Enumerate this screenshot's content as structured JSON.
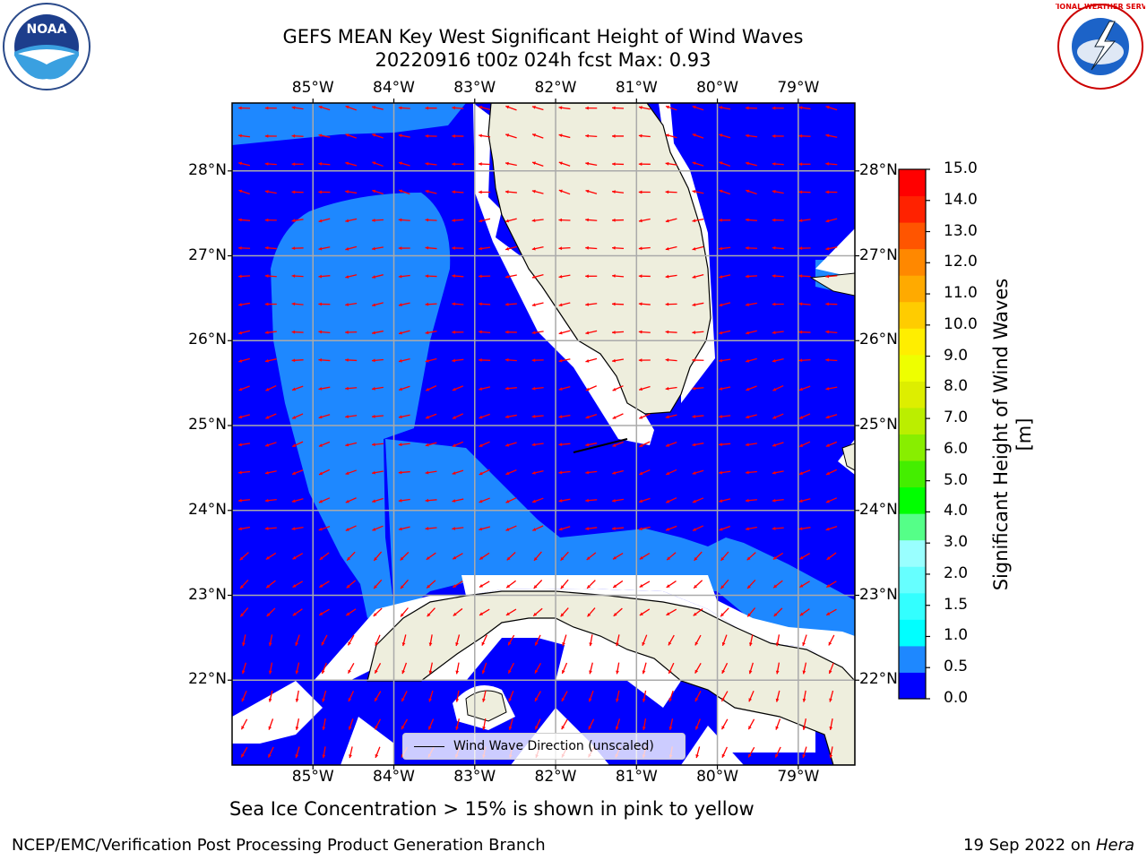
{
  "title": {
    "line1": "GEFS MEAN Key West Significant Height of Wind Waves",
    "line2": "20220916 t00z 024h fcst   Max: 0.93"
  },
  "logos": {
    "left": "NOAA",
    "right": "NATIONAL WEATHER SERVICE"
  },
  "map": {
    "lon_labels": [
      "85°W",
      "84°W",
      "83°W",
      "82°W",
      "81°W",
      "80°W",
      "79°W"
    ],
    "lat_labels": [
      "28°N",
      "27°N",
      "26°N",
      "25°N",
      "24°N",
      "23°N",
      "22°N"
    ],
    "lon_range": [
      -86.0,
      -78.3
    ],
    "lat_range": [
      21.0,
      28.8
    ],
    "grid": true,
    "arrow_color": "#ff0000",
    "land_color": "#eeeedd",
    "legend_label": "Wind Wave Direction (unscaled)"
  },
  "colorbar": {
    "label": "Significant Height of Wind Waves [m]",
    "ticks": [
      "15.0",
      "14.0",
      "13.0",
      "12.0",
      "11.0",
      "10.0",
      "9.0",
      "8.0",
      "7.0",
      "6.0",
      "5.0",
      "4.0",
      "3.0",
      "2.0",
      "1.5",
      "1.0",
      "0.5",
      "0.0"
    ],
    "colors": [
      "#0000ff",
      "#1e88ff",
      "#00ffff",
      "#33ffff",
      "#66ffff",
      "#99ffff",
      "#55ff88",
      "#00ff00",
      "#44ee00",
      "#88ee00",
      "#bbee00",
      "#ddee00",
      "#eeff00",
      "#ffee00",
      "#ffcc00",
      "#ffaa00",
      "#ff8800",
      "#ff5500",
      "#ff2200",
      "#ff0000"
    ]
  },
  "note": "Sea Ice Concentration > 15% is shown in pink to yellow",
  "footer": {
    "left": "NCEP/EMC/Verification Post Processing Product Generation Branch",
    "date": "19 Sep 2022 on ",
    "host": "Hera"
  },
  "chart_data": {
    "type": "heatmap",
    "title": "GEFS MEAN Key West Significant Height of Wind Waves",
    "subtitle": "20220916 t00z 024h fcst   Max: 0.93",
    "xlabel": "",
    "ylabel": "",
    "xlim": [
      -86.0,
      -78.3
    ],
    "ylim": [
      21.0,
      28.8
    ],
    "colorbar_label": "Significant Height of Wind Waves [m]",
    "colorbar_range": [
      0.0,
      15.0
    ],
    "max_value": 0.93,
    "grid": true,
    "legend": "Wind Wave Direction (unscaled)",
    "legend_placement": "bottom-center"
  }
}
